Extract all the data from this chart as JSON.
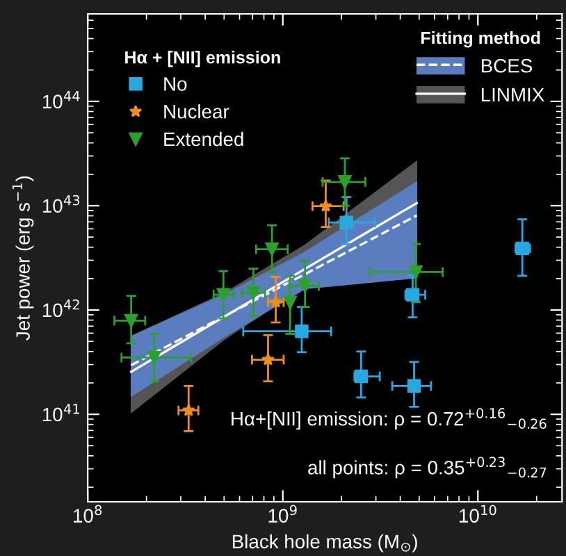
{
  "chart_data": {
    "type": "scatter",
    "xlabel": "Black hole mass (M$_{⊙}$)",
    "ylabel": "Jet power (erg s$^{−1}$)",
    "legend_title": [
      "Hα + [NII] emission",
      "Fitting method"
    ],
    "log": "xy",
    "legend": "top left",
    "grid": false,
    "xlim": [
      100000000.0,
      27000000000.0
    ],
    "ylim": [
      1.45e+40,
      6.9e+44
    ],
    "xticks": [
      {
        "value": 100000000.0,
        "label": "10$^{8}$"
      },
      {
        "value": 1000000000.0,
        "label": "10$^{9}$"
      },
      {
        "value": 10000000000.0,
        "label": "10$^{10}$"
      }
    ],
    "yticks": [
      {
        "value": 1e+41,
        "label": "10$^{41}$"
      },
      {
        "value": 1e+42,
        "label": "10$^{42}$"
      },
      {
        "value": 1e+43,
        "label": "10$^{43}$"
      },
      {
        "value": 1e+44,
        "label": "10$^{44}$"
      }
    ],
    "series": [
      {
        "name": "BCES",
        "type": "line",
        "color": "#ffffff",
        "colors": [
          "#5a7dbf",
          "#5a7dbf",
          "#5a7dbf",
          "#5a7dbf"
        ],
        "line_style": "dashed",
        "x": [
          167000000.0,
          500000000.0,
          1300000000.0,
          4860000000.0
        ],
        "values": [
          2.96e+41,
          8.7e+41,
          2.21e+42,
          8.07e+42
        ],
        "lower": [
          1.49e+41,
          5.5e+41,
          1.6e+42,
          2.03e+42
        ],
        "upper": [
          5.6e+41,
          1.4e+42,
          3.6e+42,
          1.69e+43
        ]
      },
      {
        "name": "LINMIX",
        "type": "line",
        "color": "#ffffff",
        "colors": [
          "#555555",
          "#555555",
          "#555555",
          "#555555"
        ],
        "line_style": "solid",
        "x": [
          167000000.0,
          500000000.0,
          1300000000.0,
          4860000000.0
        ],
        "values": [
          2.56e+41,
          8.6e+41,
          2.48e+42,
          1.06e+43
        ],
        "lower": [
          1.04e+41,
          5.2e+41,
          1.7e+42,
          2.5e+42
        ],
        "upper": [
          5.6e+41,
          1.45e+42,
          4.2e+42,
          2.67e+43
        ]
      },
      {
        "name": "No",
        "color": "#29a8e0",
        "marker": "square",
        "x": [
          2120000000.0,
          1250000000.0,
          4630000000.0,
          16900000000.0,
          2520000000.0,
          4710000000.0
        ],
        "values": [
          6.9e+42,
          6.25e+41,
          1.4e+42,
          3.9e+42,
          2.31e+41,
          1.87e+41
        ],
        "xerrors": [
          [
            1720000000.0,
            2970000000.0
          ],
          [
            627000000.0,
            1770000000.0
          ],
          [
            4250000000.0,
            5370000000.0
          ],
          [
            15600000000.0,
            18500000000.0
          ],
          [
            2330000000.0,
            3140000000.0
          ],
          [
            3640000000.0,
            5750000000.0
          ]
        ],
        "errors": [
          [
            4.28e+42,
            1.21e+43
          ],
          [
            3.94e+41,
            1.07e+42
          ],
          [
            8.5e+41,
            2.15e+42
          ],
          [
            2.13e+42,
            7.4e+42
          ],
          [
            1.45e+41,
            4e+41
          ],
          [
            1.18e+41,
            3.18e+41
          ]
        ]
      },
      {
        "name": "Nuclear",
        "color": "#f28c1c",
        "marker": "star",
        "x": [
          1660000000.0,
          920000000.0,
          840000000.0,
          329000000.0
        ],
        "values": [
          9.9e+42,
          1.19e+42,
          3.34e+41,
          1.09e+41
        ],
        "xerrors": [
          [
            1420000000.0,
            2050000000.0
          ],
          [
            840000000.0,
            1010000000.0
          ],
          [
            695000000.0,
            1010000000.0
          ],
          [
            292000000.0,
            369000000.0
          ]
        ],
        "errors": [
          [
            6.25e+42,
            1.74e+43
          ],
          [
            7.6e+41,
            2.07e+42
          ],
          [
            2.07e+41,
            5.75e+41
          ],
          [
            6.9e+40,
            1.87e+41
          ]
        ]
      },
      {
        "name": "Extended",
        "color": "#2ca02c",
        "marker": "triangle",
        "x": [
          167000000.0,
          219000000.0,
          496000000.0,
          707000000.0,
          880000000.0,
          1090000000.0,
          1300000000.0,
          2080000000.0,
          4810000000.0
        ],
        "values": [
          7.9e+41,
          3.5e+41,
          1.4e+42,
          1.46e+42,
          3.83e+42,
          1.18e+42,
          1.7e+42,
          1.69e+43,
          2.31e+42
        ],
        "xerrors": [
          [
            137000000.0,
            197000000.0
          ],
          [
            149000000.0,
            338000000.0
          ],
          [
            442000000.0,
            562000000.0
          ],
          [
            617000000.0,
            811000000.0
          ],
          [
            730000000.0,
            1060000000.0
          ],
          null,
          [
            1080000000.0,
            1530000000.0
          ],
          [
            1600000000.0,
            2650000000.0
          ],
          [
            2790000000.0,
            6600000000.0
          ]
        ],
        "errors": [
          [
            4.8e+41,
            1.37e+42
          ],
          [
            2.07e+41,
            5.9e+41
          ],
          [
            8.3e+41,
            2.36e+42
          ],
          [
            8.8e+41,
            2.49e+42
          ],
          [
            2.31e+42,
            6.5e+42
          ],
          [
            5.9e+41,
            2.13e+42
          ],
          [
            1.07e+42,
            2.96e+42
          ],
          [
            1e+43,
            2.84e+43
          ],
          [
            1.19e+42,
            4.28e+42
          ]
        ]
      }
    ],
    "annotations": [
      "Hα+[NII] emission: ρ = 0.72$^{+0.16}$$_{−0.26}$",
      "all points: ρ = 0.35$^{+0.23}$$_{−0.27}$"
    ]
  }
}
